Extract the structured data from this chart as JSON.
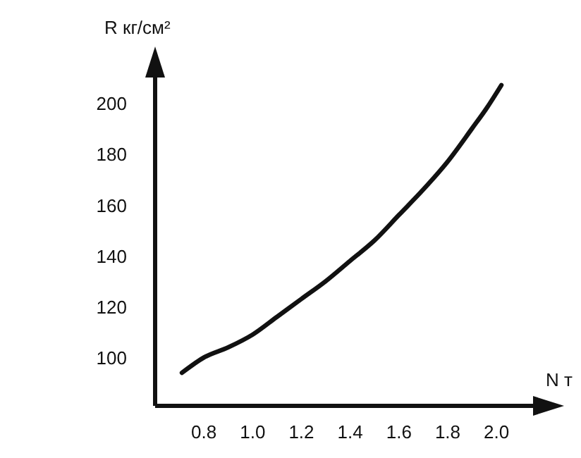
{
  "chart_data": {
    "type": "line",
    "xlabel": "N т",
    "ylabel": "R кг/см²",
    "x": [
      0.71,
      0.8,
      0.9,
      1.0,
      1.1,
      1.2,
      1.3,
      1.4,
      1.5,
      1.6,
      1.7,
      1.8,
      1.9,
      1.96,
      2.02
    ],
    "series": [
      {
        "color": "#111111",
        "values": [
          94,
          100,
          104,
          109,
          116,
          123,
          130,
          138,
          146,
          156,
          166,
          177,
          190,
          198,
          207
        ]
      }
    ],
    "xlim": [
      0.6,
      2.15
    ],
    "ylim": [
      81,
      210
    ],
    "xticks": [
      0.8,
      {
        "value": 1.0,
        "label": "1.0"
      },
      1.2,
      1.4,
      1.6,
      1.8,
      {
        "value": 2.0,
        "label": "2.0"
      }
    ],
    "yticks": [
      100,
      120,
      140,
      160,
      180,
      200
    ],
    "grid": false,
    "marker": "none",
    "line_style": "solid"
  }
}
